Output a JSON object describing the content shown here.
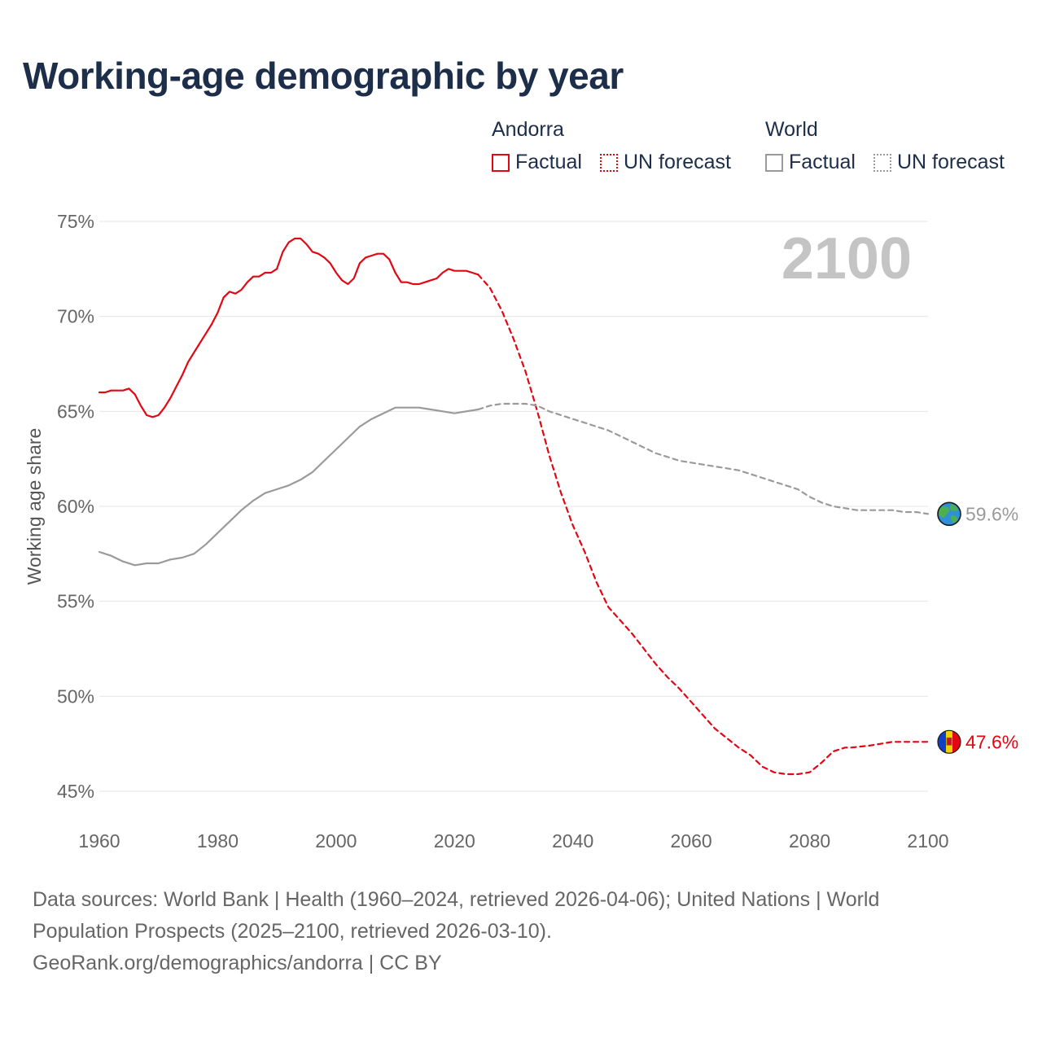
{
  "title": "Working-age demographic by year",
  "legend": {
    "andorra_title": "Andorra",
    "world_title": "World",
    "factual": "Factual",
    "forecast": "UN forecast"
  },
  "colors": {
    "andorra": "#e30613",
    "world": "#9a9a9a",
    "title": "#1c2e4a",
    "grid": "#e6e6e6",
    "year_watermark": "#c4c4c4"
  },
  "chart_data": {
    "type": "line",
    "title": "Working-age demographic by year",
    "ylabel": "Working age share",
    "xlabel": "",
    "xlim": [
      1960,
      2100
    ],
    "ylim": [
      45,
      75
    ],
    "x_ticks": [
      1960,
      1980,
      2000,
      2020,
      2040,
      2060,
      2080,
      2100
    ],
    "x_tick_labels": [
      "1960",
      "1980",
      "2000",
      "2020",
      "2040",
      "2060",
      "2080",
      "2100"
    ],
    "y_ticks": [
      45,
      50,
      55,
      60,
      65,
      70,
      75
    ],
    "y_tick_labels": [
      "45%",
      "50%",
      "55%",
      "60%",
      "65%",
      "70%",
      "75%"
    ],
    "current_year_label": "2100",
    "series": [
      {
        "name": "Andorra Factual",
        "icon": "andorra-flag-icon",
        "x": [
          1960,
          1961,
          1962,
          1963,
          1964,
          1965,
          1966,
          1967,
          1968,
          1969,
          1970,
          1971,
          1972,
          1973,
          1974,
          1975,
          1976,
          1977,
          1978,
          1979,
          1980,
          1981,
          1982,
          1983,
          1984,
          1985,
          1986,
          1987,
          1988,
          1989,
          1990,
          1991,
          1992,
          1993,
          1994,
          1995,
          1996,
          1997,
          1998,
          1999,
          2000,
          2001,
          2002,
          2003,
          2004,
          2005,
          2006,
          2007,
          2008,
          2009,
          2010,
          2011,
          2012,
          2013,
          2014,
          2015,
          2016,
          2017,
          2018,
          2019,
          2020,
          2021,
          2022,
          2023,
          2024
        ],
        "values": [
          66.0,
          66.0,
          66.1,
          66.1,
          66.1,
          66.2,
          65.9,
          65.3,
          64.8,
          64.7,
          64.8,
          65.2,
          65.7,
          66.3,
          66.9,
          67.6,
          68.1,
          68.6,
          69.1,
          69.6,
          70.2,
          71.0,
          71.3,
          71.2,
          71.4,
          71.8,
          72.1,
          72.1,
          72.3,
          72.3,
          72.5,
          73.4,
          73.9,
          74.1,
          74.1,
          73.8,
          73.4,
          73.3,
          73.1,
          72.8,
          72.3,
          71.9,
          71.7,
          72.0,
          72.8,
          73.1,
          73.2,
          73.3,
          73.3,
          73.0,
          72.3,
          71.8,
          71.8,
          71.7,
          71.7,
          71.8,
          71.9,
          72.0,
          72.3,
          72.5,
          72.4,
          72.4,
          72.4,
          72.3,
          72.2
        ]
      },
      {
        "name": "Andorra UN forecast",
        "x": [
          2024,
          2026,
          2028,
          2030,
          2032,
          2034,
          2036,
          2038,
          2040,
          2042,
          2044,
          2046,
          2048,
          2050,
          2052,
          2054,
          2056,
          2058,
          2060,
          2062,
          2064,
          2066,
          2068,
          2070,
          2072,
          2074,
          2076,
          2078,
          2080,
          2082,
          2084,
          2086,
          2087,
          2090,
          2092,
          2094,
          2096,
          2098,
          2100
        ],
        "values": [
          72.2,
          71.5,
          70.3,
          68.8,
          67.1,
          65.0,
          62.7,
          60.7,
          59.0,
          57.6,
          56.0,
          54.7,
          54.0,
          53.3,
          52.5,
          51.7,
          51.0,
          50.4,
          49.7,
          49.0,
          48.3,
          47.8,
          47.3,
          46.9,
          46.3,
          46.0,
          45.9,
          45.9,
          46.0,
          46.5,
          47.1,
          47.3,
          47.3,
          47.4,
          47.5,
          47.6,
          47.6,
          47.6,
          47.6
        ]
      },
      {
        "name": "World Factual",
        "icon": "globe-icon",
        "x": [
          1960,
          1962,
          1964,
          1966,
          1968,
          1970,
          1972,
          1974,
          1976,
          1978,
          1980,
          1982,
          1984,
          1986,
          1988,
          1990,
          1992,
          1994,
          1996,
          1998,
          2000,
          2002,
          2004,
          2006,
          2008,
          2010,
          2012,
          2014,
          2016,
          2018,
          2020,
          2022,
          2024
        ],
        "values": [
          57.6,
          57.4,
          57.1,
          56.9,
          57.0,
          57.0,
          57.2,
          57.3,
          57.5,
          58.0,
          58.6,
          59.2,
          59.8,
          60.3,
          60.7,
          60.9,
          61.1,
          61.4,
          61.8,
          62.4,
          63.0,
          63.6,
          64.2,
          64.6,
          64.9,
          65.2,
          65.2,
          65.2,
          65.1,
          65.0,
          64.9,
          65.0,
          65.1
        ]
      },
      {
        "name": "World UN forecast",
        "x": [
          2024,
          2026,
          2028,
          2030,
          2032,
          2034,
          2036,
          2038,
          2040,
          2042,
          2044,
          2046,
          2048,
          2050,
          2052,
          2054,
          2056,
          2058,
          2060,
          2062,
          2064,
          2066,
          2068,
          2070,
          2072,
          2074,
          2076,
          2078,
          2080,
          2082,
          2084,
          2086,
          2088,
          2090,
          2092,
          2094,
          2096,
          2098,
          2100
        ],
        "values": [
          65.1,
          65.3,
          65.4,
          65.4,
          65.4,
          65.3,
          65.0,
          64.8,
          64.6,
          64.4,
          64.2,
          64.0,
          63.7,
          63.4,
          63.1,
          62.8,
          62.6,
          62.4,
          62.3,
          62.2,
          62.1,
          62.0,
          61.9,
          61.7,
          61.5,
          61.3,
          61.1,
          60.9,
          60.5,
          60.2,
          60.0,
          59.9,
          59.8,
          59.8,
          59.8,
          59.8,
          59.7,
          59.7,
          59.6
        ]
      }
    ],
    "end_labels": {
      "andorra": "47.6%",
      "world": "59.6%"
    }
  },
  "sources": {
    "line1": "Data sources: World Bank | Health (1960–2024, retrieved 2026-04-06); United Nations | World",
    "line2": "Population Prospects (2025–2100, retrieved 2026-03-10).",
    "line3": "GeoRank.org/demographics/andorra | CC BY"
  }
}
